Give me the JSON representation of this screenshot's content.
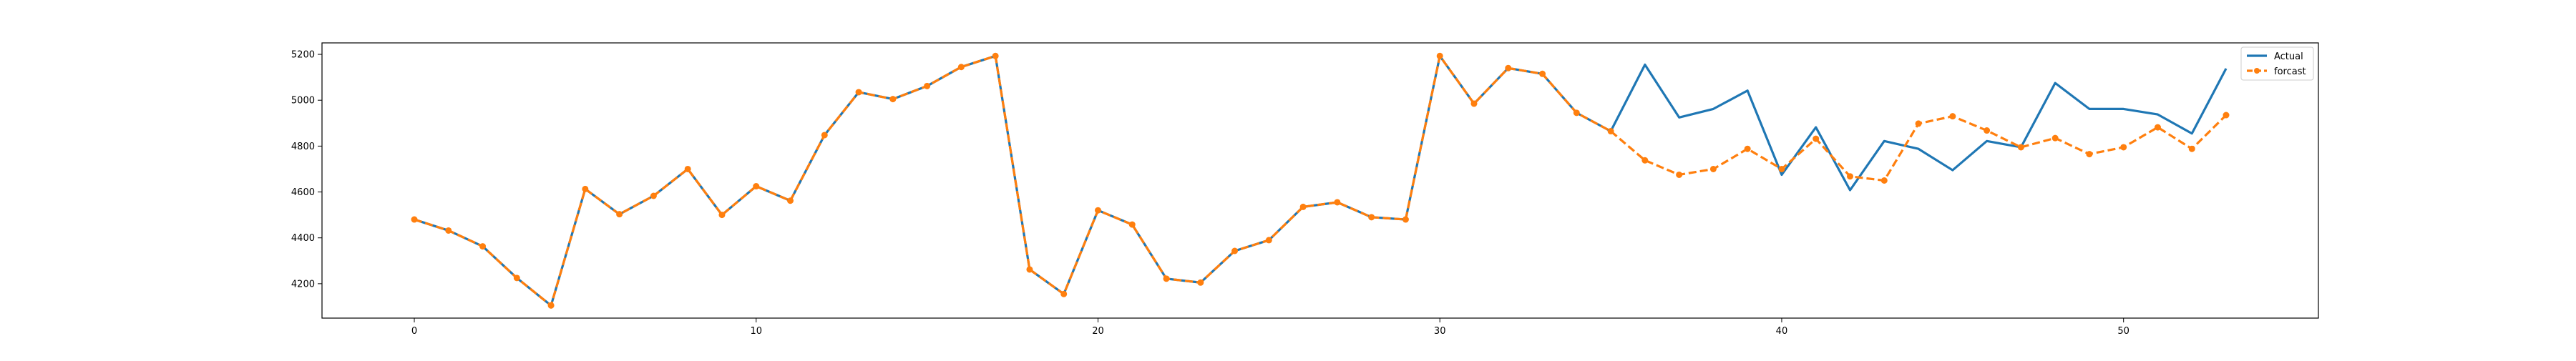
{
  "chart_data": {
    "type": "line",
    "title": "",
    "xlabel": "",
    "ylabel": "",
    "xlim": [
      -2.7,
      55.7
    ],
    "ylim": [
      4050,
      5250
    ],
    "xticks": [
      0,
      10,
      20,
      30,
      40,
      50
    ],
    "yticks": [
      4200,
      4400,
      4600,
      4800,
      5000,
      5200
    ],
    "grid": false,
    "legend_position": "top-right",
    "series": [
      {
        "name": "Actual",
        "color": "#1f77b4",
        "style": "solid",
        "x": [
          0,
          1,
          2,
          3,
          4,
          5,
          6,
          7,
          8,
          9,
          10,
          11,
          12,
          13,
          14,
          15,
          16,
          17,
          18,
          19,
          20,
          21,
          22,
          23,
          24,
          25,
          26,
          27,
          28,
          29,
          30,
          31,
          32,
          33,
          34,
          35,
          36,
          37,
          38,
          39,
          40,
          41,
          42,
          43,
          44,
          45,
          46,
          47,
          48,
          49,
          50,
          51,
          52,
          53
        ],
        "values": [
          4480,
          4432,
          4363,
          4225,
          4105,
          4613,
          4503,
          4583,
          4700,
          4500,
          4625,
          4562,
          4848,
          5035,
          5005,
          5062,
          5145,
          5193,
          4262,
          4155,
          4520,
          4458,
          4222,
          4205,
          4343,
          4390,
          4535,
          4555,
          4490,
          4480,
          5193,
          4985,
          5140,
          5115,
          4945,
          4865,
          5155,
          4925,
          4962,
          5042,
          4675,
          4882,
          4608,
          4822,
          4788,
          4695,
          4822,
          4795,
          5075,
          4962,
          4962,
          4938,
          4855,
          5138
        ]
      },
      {
        "name": "forcast",
        "color": "#ff7f0e",
        "style": "dashed",
        "marker": "circle",
        "x": [
          0,
          1,
          2,
          3,
          4,
          5,
          6,
          7,
          8,
          9,
          10,
          11,
          12,
          13,
          14,
          15,
          16,
          17,
          18,
          19,
          20,
          21,
          22,
          23,
          24,
          25,
          26,
          27,
          28,
          29,
          30,
          31,
          32,
          33,
          34,
          35,
          36,
          37,
          38,
          39,
          40,
          41,
          42,
          43,
          44,
          45,
          46,
          47,
          48,
          49,
          50,
          51,
          52,
          53
        ],
        "values": [
          4480,
          4432,
          4363,
          4225,
          4105,
          4613,
          4503,
          4583,
          4700,
          4500,
          4625,
          4562,
          4848,
          5035,
          5005,
          5062,
          5145,
          5193,
          4262,
          4155,
          4520,
          4458,
          4222,
          4205,
          4343,
          4390,
          4535,
          4555,
          4490,
          4480,
          5193,
          4985,
          5140,
          5115,
          4945,
          4865,
          4738,
          4675,
          4700,
          4788,
          4700,
          4832,
          4668,
          4650,
          4898,
          4930,
          4868,
          4795,
          4835,
          4765,
          4795,
          4882,
          4788,
          4935
        ]
      }
    ]
  }
}
